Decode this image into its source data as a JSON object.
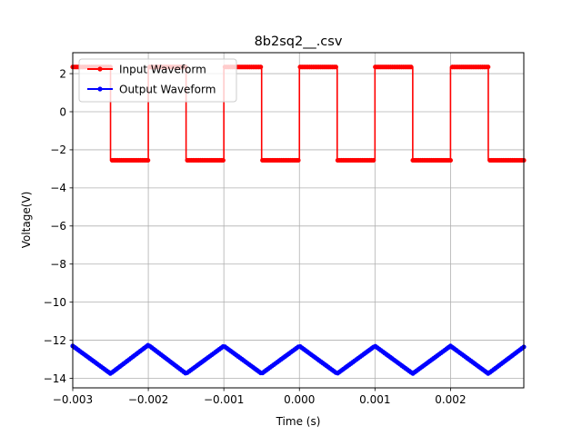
{
  "chart_data": {
    "type": "line",
    "title": "8b2sq2__.csv",
    "xlabel": "Time (s)",
    "ylabel": "Voltage(V)",
    "xlim": [
      -0.003,
      0.00297
    ],
    "ylim": [
      -14.5,
      3.1
    ],
    "xticks": [
      -0.003,
      -0.002,
      -0.001,
      0.0,
      0.001,
      0.002
    ],
    "xtick_labels": [
      "−0.003",
      "−0.002",
      "−0.001",
      "0.000",
      "0.001",
      "0.002"
    ],
    "yticks": [
      2,
      0,
      -2,
      -4,
      -6,
      -8,
      -10,
      -12,
      -14
    ],
    "ytick_labels": [
      "2",
      "0",
      "−2",
      "−4",
      "−6",
      "−8",
      "−10",
      "−12",
      "−14"
    ],
    "grid": true,
    "legend_position": "upper-left",
    "series": [
      {
        "name": "Input Waveform",
        "color": "#ff0000",
        "x": [
          -0.003,
          -0.0025,
          -0.0025,
          -0.002,
          -0.002,
          -0.0015,
          -0.0015,
          -0.001,
          -0.001,
          -0.0005,
          -0.0005,
          0.0,
          0.0,
          0.0005,
          0.0005,
          0.001,
          0.001,
          0.0015,
          0.0015,
          0.002,
          0.002,
          0.0025,
          0.0025,
          0.00297
        ],
        "y": [
          2.35,
          2.35,
          -2.55,
          -2.55,
          2.35,
          2.35,
          -2.55,
          -2.55,
          2.35,
          2.35,
          -2.55,
          -2.55,
          2.35,
          2.35,
          -2.55,
          -2.55,
          2.35,
          2.35,
          -2.55,
          -2.55,
          2.35,
          2.35,
          -2.55,
          -2.55
        ]
      },
      {
        "name": "Output Waveform",
        "color": "#0000ff",
        "x": [
          -0.003,
          -0.0025,
          -0.002,
          -0.0015,
          -0.001,
          -0.0005,
          0.0,
          0.0005,
          0.001,
          0.0015,
          0.002,
          0.0025,
          0.00297
        ],
        "y": [
          -12.3,
          -13.75,
          -12.25,
          -13.75,
          -12.3,
          -13.75,
          -12.3,
          -13.75,
          -12.3,
          -13.75,
          -12.3,
          -13.75,
          -12.35
        ]
      }
    ]
  }
}
